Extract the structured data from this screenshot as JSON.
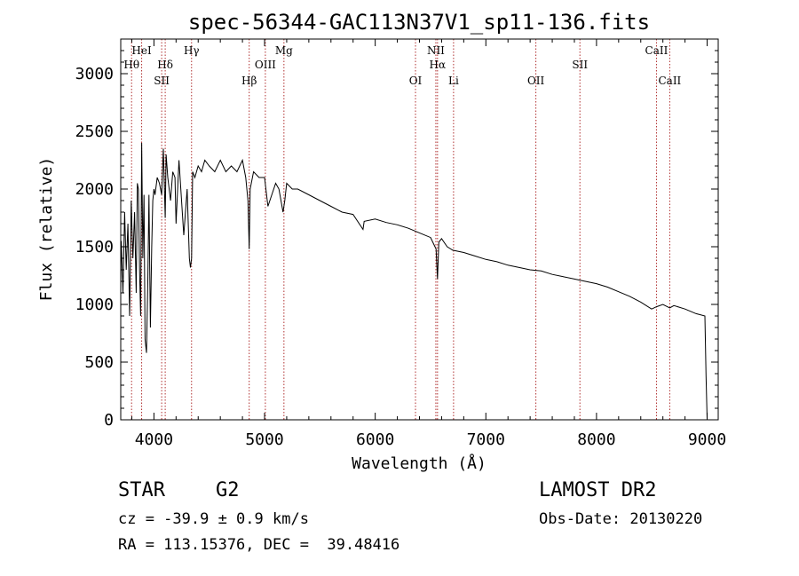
{
  "chart_data": {
    "type": "line",
    "title": "spec-56344-GAC113N37V1_sp11-136.fits",
    "xlabel": "Wavelength (Å)",
    "ylabel": "Flux (relative)",
    "xlim": [
      3700,
      9100
    ],
    "ylim": [
      0,
      3300
    ],
    "x_ticks": [
      4000,
      5000,
      6000,
      7000,
      8000,
      9000
    ],
    "y_ticks": [
      0,
      500,
      1000,
      1500,
      2000,
      2500,
      3000
    ],
    "grid": false,
    "line_color": "#000000",
    "marker_color": "#b03030",
    "spectrum": {
      "x": [
        3700,
        3705,
        3720,
        3735,
        3750,
        3765,
        3780,
        3795,
        3810,
        3825,
        3840,
        3850,
        3860,
        3870,
        3880,
        3889,
        3900,
        3910,
        3920,
        3933,
        3945,
        3955,
        3968,
        3980,
        3990,
        4000,
        4010,
        4030,
        4050,
        4070,
        4085,
        4102,
        4110,
        4125,
        4150,
        4170,
        4190,
        4200,
        4226,
        4250,
        4270,
        4300,
        4320,
        4330,
        4340,
        4350,
        4370,
        4400,
        4430,
        4460,
        4500,
        4550,
        4600,
        4650,
        4700,
        4750,
        4800,
        4830,
        4850,
        4861,
        4870,
        4900,
        4950,
        5000,
        5030,
        5100,
        5130,
        5167,
        5183,
        5200,
        5250,
        5300,
        5400,
        5500,
        5600,
        5700,
        5800,
        5890,
        5900,
        6000,
        6100,
        6200,
        6300,
        6400,
        6500,
        6530,
        6550,
        6563,
        6575,
        6600,
        6650,
        6700,
        6800,
        6900,
        7000,
        7100,
        7200,
        7300,
        7400,
        7500,
        7600,
        7700,
        7800,
        7900,
        8000,
        8100,
        8200,
        8300,
        8400,
        8498,
        8542,
        8600,
        8662,
        8700,
        8800,
        8900,
        8980,
        8990,
        9000
      ],
      "y": [
        1200,
        1550,
        1100,
        1800,
        1300,
        1700,
        900,
        1900,
        1400,
        1800,
        1100,
        2050,
        2000,
        1300,
        900,
        2400,
        1400,
        1950,
        700,
        580,
        1200,
        1950,
        800,
        1500,
        1900,
        2000,
        1950,
        2100,
        2050,
        1950,
        2350,
        1750,
        2300,
        2100,
        1900,
        2150,
        2100,
        1700,
        2250,
        1900,
        1600,
        2000,
        1400,
        1320,
        1400,
        2150,
        2100,
        2200,
        2150,
        2250,
        2200,
        2150,
        2250,
        2150,
        2200,
        2150,
        2250,
        2100,
        1900,
        1480,
        2000,
        2150,
        2100,
        2100,
        1850,
        2050,
        2000,
        1800,
        1900,
        2050,
        2000,
        2000,
        1950,
        1900,
        1850,
        1800,
        1780,
        1650,
        1720,
        1740,
        1710,
        1690,
        1660,
        1620,
        1580,
        1520,
        1480,
        1220,
        1540,
        1570,
        1500,
        1470,
        1450,
        1420,
        1390,
        1370,
        1340,
        1320,
        1300,
        1290,
        1260,
        1240,
        1220,
        1200,
        1180,
        1150,
        1110,
        1070,
        1020,
        960,
        980,
        1000,
        970,
        990,
        960,
        920,
        900,
        380,
        10
      ]
    },
    "spectral_lines": [
      {
        "label": "Hθ",
        "wavelength": 3798,
        "row": 2
      },
      {
        "label": "HeI",
        "wavelength": 3889,
        "row": 1
      },
      {
        "label": "SII",
        "wavelength": 4070,
        "row": 3
      },
      {
        "label": "Hδ",
        "wavelength": 4102,
        "row": 2
      },
      {
        "label": "Hγ",
        "wavelength": 4340,
        "row": 1
      },
      {
        "label": "Hβ",
        "wavelength": 4861,
        "row": 3
      },
      {
        "label": "OIII",
        "wavelength": 5007,
        "row": 2
      },
      {
        "label": "Mg",
        "wavelength": 5175,
        "row": 1
      },
      {
        "label": "OI",
        "wavelength": 6364,
        "row": 3
      },
      {
        "label": "NII",
        "wavelength": 6548,
        "row": 1
      },
      {
        "label": "Hα",
        "wavelength": 6563,
        "row": 2
      },
      {
        "label": "Li",
        "wavelength": 6708,
        "row": 3
      },
      {
        "label": "OII",
        "wavelength": 7452,
        "row": 3
      },
      {
        "label": "SII",
        "wavelength": 7850,
        "row": 2
      },
      {
        "label": "CaII",
        "wavelength": 8542,
        "row": 1
      },
      {
        "label": "CaII",
        "wavelength": 8662,
        "row": 3
      }
    ]
  },
  "info": {
    "object_class": "STAR",
    "subclass": "G2",
    "cz": "cz = -39.9 ± 0.9 km/s",
    "coords": "RA = 113.15376, DEC =  39.48416",
    "survey": "LAMOST DR2",
    "obs_date": "Obs-Date: 20130220"
  }
}
